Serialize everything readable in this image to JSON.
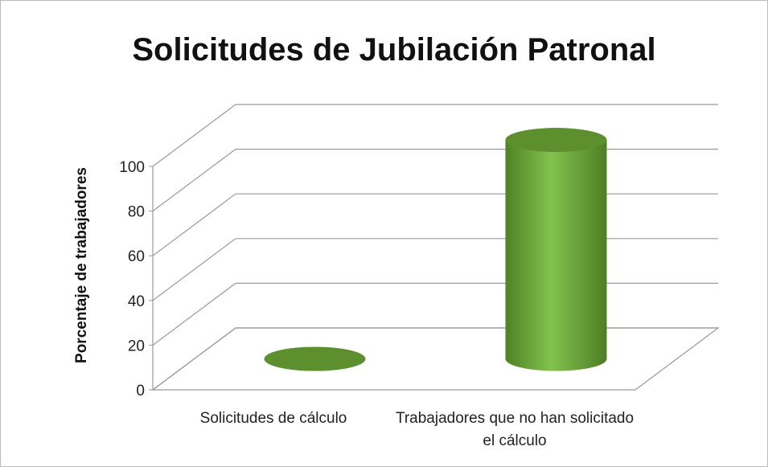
{
  "chart_data": {
    "type": "bar3d",
    "title": "Solicitudes de Jubilación Patronal",
    "y_label": "Porcentaje de trabajadores",
    "categories": [
      "Solicitudes de cálculo",
      "Trabajadores que no han solicitado el cálculo"
    ],
    "values": [
      0,
      98
    ],
    "color": "#6fae3c",
    "ylim": [
      0,
      100
    ],
    "yticks": [
      0,
      20,
      40,
      60,
      80,
      100
    ],
    "grid": true
  }
}
